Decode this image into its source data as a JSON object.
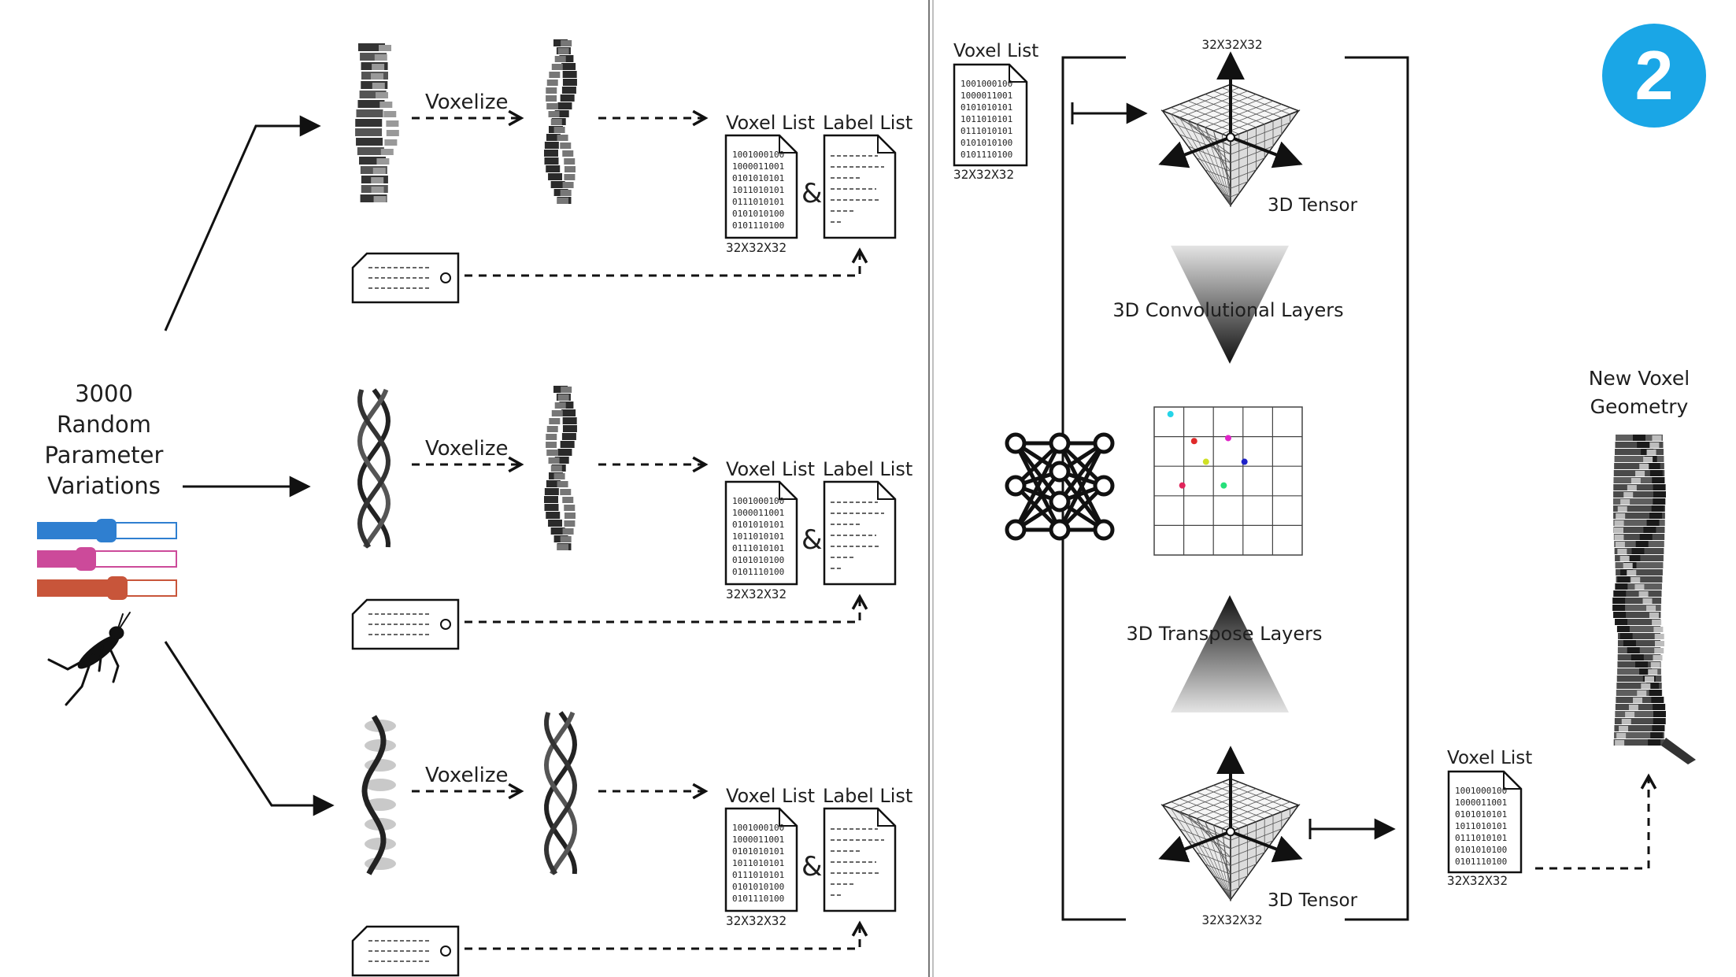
{
  "left": {
    "source_label": [
      "3000",
      "Random",
      "Parameter",
      "Variations"
    ],
    "slider_colors": [
      "#2f7fd0",
      "#cc4a9a",
      "#c8553a"
    ],
    "rows": [
      {
        "step": "Voxelize",
        "voxel_list_title": "Voxel List",
        "label_list_title": "Label List",
        "amp": "&",
        "size": "32X32X32",
        "bits": [
          "1001000100",
          "1000011001",
          "0101010101",
          "1011010101",
          "0111010101",
          "0101010100",
          "0101110100"
        ]
      },
      {
        "step": "Voxelize",
        "voxel_list_title": "Voxel List",
        "label_list_title": "Label List",
        "amp": "&",
        "size": "32X32X32",
        "bits": [
          "1001000100",
          "1000011001",
          "0101010101",
          "1011010101",
          "0111010101",
          "0101010100",
          "0101110100"
        ]
      },
      {
        "step": "Voxelize",
        "voxel_list_title": "Voxel List",
        "label_list_title": "Label List",
        "amp": "&",
        "size": "32X32X32",
        "bits": [
          "1001000100",
          "1000011001",
          "0101010101",
          "1011010101",
          "0111010101",
          "0101010100",
          "0101110100"
        ]
      }
    ]
  },
  "right": {
    "badge": "2",
    "badge_color": "#1aa6e6",
    "input": {
      "title": "Voxel List",
      "size": "32X32X32",
      "bits": [
        "1001000100",
        "1000011001",
        "0101010101",
        "1011010101",
        "0111010101",
        "0101010100",
        "0101110100"
      ]
    },
    "top_tensor_size": "32X32X32",
    "top_tensor_label": "3D Tensor",
    "conv_label": "3D Convolutional Layers",
    "transpose_label": "3D Transpose Layers",
    "bottom_tensor_label": "3D Tensor",
    "bottom_tensor_size": "32X32X32",
    "latent_dot_colors": [
      "#25d4e8",
      "#e02a2a",
      "#e024c8",
      "#cfe025",
      "#1e22c8",
      "#e0245a",
      "#25e07a"
    ],
    "output": {
      "title": "Voxel List",
      "size": "32X32X32",
      "bits": [
        "1001000100",
        "1000011001",
        "0101010101",
        "1011010101",
        "0111010101",
        "0101010100",
        "0101110100"
      ]
    },
    "result_label": [
      "New Voxel",
      "Geometry"
    ]
  }
}
